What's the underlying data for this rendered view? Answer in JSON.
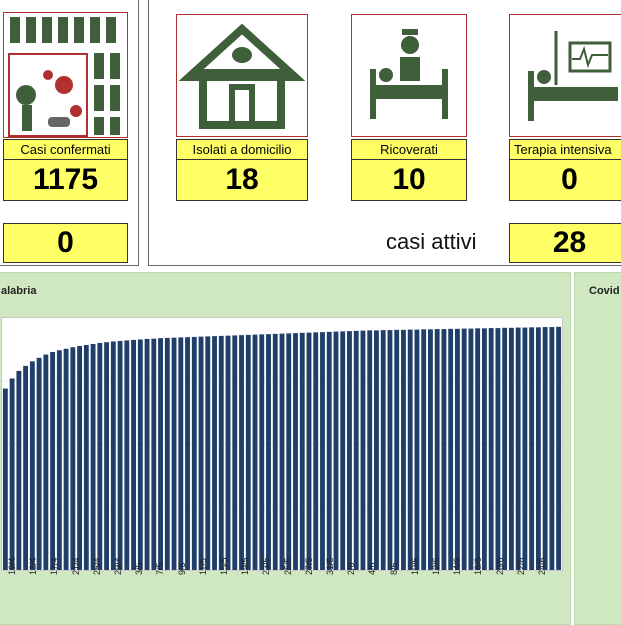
{
  "cards": [
    {
      "label": "Casi confermati",
      "value": "1175"
    },
    {
      "label": "Isolati a domicilio",
      "value": "18"
    },
    {
      "label": "Ricoverati",
      "value": "10"
    },
    {
      "label": "Terapia intensiva",
      "value": "0"
    }
  ],
  "bottom_left_value": "0",
  "casi_attivi_label": "casi attivi",
  "casi_attivi_value": "28",
  "panel_title": "alabria",
  "right_panel_title": "Covid",
  "chart_data": {
    "type": "bar",
    "series": [
      {
        "values": [
          720,
          760,
          790,
          810,
          828,
          842,
          855,
          865,
          872,
          878,
          884,
          889,
          893,
          897,
          901,
          904,
          907,
          909,
          911,
          913,
          915,
          917,
          918,
          920,
          921,
          922,
          923,
          924,
          925,
          926,
          927,
          928,
          929,
          930,
          931,
          932,
          933,
          934,
          935,
          936,
          937,
          938,
          939,
          940,
          941,
          942,
          943,
          944,
          945,
          946,
          947,
          948,
          949,
          950,
          951,
          951,
          952,
          952,
          953,
          953,
          954,
          954,
          955,
          955,
          956,
          956,
          957,
          957,
          958,
          958,
          959,
          959,
          960,
          960,
          961,
          961,
          962,
          962,
          963,
          963,
          964,
          964,
          965
        ]
      }
    ],
    "xticks": [
      "19/4",
      "13/4",
      "17/4",
      "21/4",
      "25/4",
      "29/4",
      "3/5",
      "7/5",
      "9/5",
      "11/5",
      "15/5",
      "19/5",
      "23/5",
      "25/5",
      "27/5",
      "31/5",
      "2/6",
      "4/6",
      "8/6",
      "10/6",
      "12/6",
      "14/6",
      "18/6",
      "20/6",
      "22/6",
      "24/6"
    ],
    "ylim": [
      0,
      1000
    ]
  }
}
